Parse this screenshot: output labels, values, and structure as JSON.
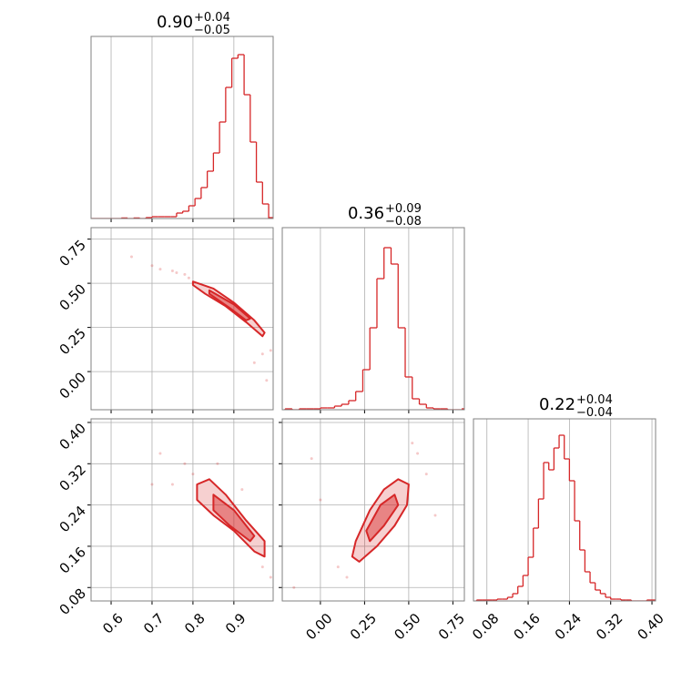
{
  "chart_data": {
    "type": "corner",
    "color": "#d62728",
    "grid": true,
    "hist_ylim": [
      0,
      100
    ],
    "params": [
      {
        "title": {
          "value": "0.90",
          "upper": "+0.04",
          "lower": "−0.05"
        },
        "lim": [
          0.551,
          0.996
        ],
        "ticks": [
          0.6,
          0.7,
          0.8,
          0.9
        ]
      },
      {
        "title": {
          "value": "0.36",
          "upper": "+0.09",
          "lower": "−0.08"
        },
        "lim": [
          -0.216,
          0.815
        ],
        "ticks": [
          {
            "value": 0,
            "label": "0.00"
          },
          0.25,
          {
            "value": 0.5,
            "label": "0.50"
          },
          0.75
        ]
      },
      {
        "title": {
          "value": "0.22",
          "upper": "+0.04",
          "lower": "−0.04"
        },
        "lim": [
          0.054,
          0.407
        ],
        "ticks": [
          0.08,
          0.16,
          0.24,
          0.32,
          {
            "value": 0.4,
            "label": "0.40"
          }
        ]
      }
    ],
    "histograms": [
      {
        "bins": [
          0.55,
          0.565,
          0.58,
          0.595,
          0.61,
          0.625,
          0.64,
          0.655,
          0.67,
          0.685,
          0.7,
          0.715,
          0.73,
          0.745,
          0.76,
          0.775,
          0.79,
          0.805,
          0.82,
          0.835,
          0.85,
          0.865,
          0.88,
          0.895,
          0.91,
          0.925,
          0.94,
          0.955,
          0.97,
          0.985
        ],
        "counts": [
          0,
          0,
          0,
          0,
          0,
          0.3,
          0,
          0.3,
          0,
          0.5,
          1,
          1,
          1,
          1,
          3,
          4,
          7,
          11,
          17,
          26,
          36,
          53,
          72,
          88,
          90,
          68,
          42,
          20,
          8
        ]
      },
      {
        "bins": [
          -0.2,
          -0.16,
          -0.12,
          -0.08,
          -0.04,
          0,
          0.04,
          0.08,
          0.12,
          0.16,
          0.2,
          0.24,
          0.28,
          0.32,
          0.36,
          0.4,
          0.44,
          0.48,
          0.52,
          0.56,
          0.6,
          0.64,
          0.68,
          0.72,
          0.76,
          0.8
        ],
        "counts": [
          0.5,
          0,
          0.5,
          0.5,
          0.5,
          1,
          1,
          2,
          3,
          5,
          10,
          22,
          45,
          72,
          89,
          80,
          45,
          18,
          6,
          3,
          1,
          0.5,
          0.5,
          0,
          0
        ]
      },
      {
        "bins": [
          0.06,
          0.07,
          0.08,
          0.09,
          0.1,
          0.11,
          0.12,
          0.13,
          0.14,
          0.15,
          0.16,
          0.17,
          0.18,
          0.19,
          0.2,
          0.21,
          0.22,
          0.23,
          0.24,
          0.25,
          0.26,
          0.27,
          0.28,
          0.29,
          0.3,
          0.31,
          0.32,
          0.33,
          0.34,
          0.35,
          0.36,
          0.37,
          0.38,
          0.39,
          0.4
        ],
        "counts": [
          0.5,
          0.5,
          0.5,
          0.5,
          1,
          1,
          2,
          4,
          8,
          14,
          24,
          40,
          56,
          76,
          72,
          84,
          91,
          78,
          66,
          44,
          28,
          16,
          10,
          6,
          4,
          2,
          1,
          1,
          0.5,
          0.5,
          0,
          0,
          0,
          0.5
        ]
      }
    ],
    "pairs": [
      {
        "x_param": 0,
        "y_param": 1,
        "contours": [
          {
            "x": [
              0.8,
              0.85,
              0.9,
              0.95,
              0.975,
              0.97,
              0.93,
              0.88,
              0.83,
              0.8
            ],
            "y": [
              0.51,
              0.47,
              0.39,
              0.29,
              0.22,
              0.2,
              0.28,
              0.37,
              0.44,
              0.49
            ]
          },
          {
            "x": [
              0.84,
              0.9,
              0.94,
              0.93,
              0.89,
              0.84
            ],
            "y": [
              0.46,
              0.38,
              0.3,
              0.29,
              0.36,
              0.44
            ]
          }
        ],
        "samples": {
          "x": [
            0.7,
            0.75,
            0.78,
            0.65,
            0.72,
            0.97,
            0.99,
            0.95,
            0.98,
            0.76,
            0.79
          ],
          "y": [
            0.6,
            0.57,
            0.55,
            0.65,
            0.58,
            0.1,
            0.12,
            0.05,
            -0.05,
            0.56,
            0.53
          ]
        }
      },
      {
        "x_param": 0,
        "y_param": 2,
        "contours": [
          {
            "x": [
              0.81,
              0.84,
              0.88,
              0.93,
              0.975,
              0.975,
              0.95,
              0.9,
              0.85,
              0.81
            ],
            "y": [
              0.28,
              0.29,
              0.26,
              0.21,
              0.17,
              0.14,
              0.15,
              0.19,
              0.22,
              0.25
            ]
          },
          {
            "x": [
              0.85,
              0.9,
              0.95,
              0.94,
              0.89,
              0.85
            ],
            "y": [
              0.26,
              0.23,
              0.18,
              0.17,
              0.2,
              0.23
            ]
          }
        ],
        "samples": {
          "x": [
            0.72,
            0.78,
            0.8,
            0.75,
            0.97,
            0.99,
            0.7,
            0.86,
            0.92
          ],
          "y": [
            0.34,
            0.32,
            0.3,
            0.28,
            0.12,
            0.1,
            0.28,
            0.32,
            0.27
          ]
        }
      },
      {
        "x_param": 1,
        "y_param": 2,
        "contours": [
          {
            "x": [
              0.18,
              0.2,
              0.28,
              0.36,
              0.44,
              0.5,
              0.49,
              0.42,
              0.32,
              0.22
            ],
            "y": [
              0.14,
              0.17,
              0.23,
              0.27,
              0.29,
              0.28,
              0.24,
              0.2,
              0.16,
              0.13
            ]
          },
          {
            "x": [
              0.26,
              0.34,
              0.42,
              0.44,
              0.36,
              0.28
            ],
            "y": [
              0.19,
              0.24,
              0.26,
              0.24,
              0.2,
              0.17
            ]
          }
        ],
        "samples": {
          "x": [
            -0.05,
            0,
            -0.15,
            0.55,
            0.6,
            0.52,
            0.1,
            0.65,
            0.15
          ],
          "y": [
            0.33,
            0.25,
            0.08,
            0.34,
            0.3,
            0.36,
            0.12,
            0.22,
            0.1
          ]
        }
      }
    ]
  }
}
